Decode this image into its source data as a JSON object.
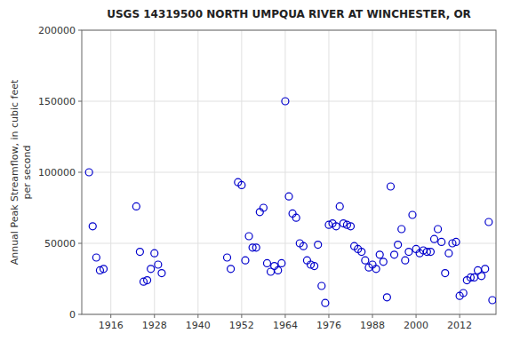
{
  "chart_data": {
    "type": "scatter",
    "title": "USGS 14319500 NORTH UMPQUA RIVER AT WINCHESTER, OR",
    "ylabel": "Annual Peak Streamflow, in cubic feet\nper second",
    "x": [
      1910,
      1911,
      1912,
      1913,
      1914,
      1923,
      1924,
      1925,
      1926,
      1927,
      1928,
      1929,
      1930,
      1948,
      1949,
      1951,
      1952,
      1953,
      1954,
      1955,
      1956,
      1957,
      1958,
      1959,
      1960,
      1961,
      1962,
      1963,
      1964,
      1965,
      1966,
      1967,
      1968,
      1969,
      1970,
      1971,
      1972,
      1973,
      1974,
      1975,
      1976,
      1977,
      1978,
      1979,
      1980,
      1981,
      1982,
      1983,
      1984,
      1985,
      1986,
      1987,
      1988,
      1989,
      1990,
      1991,
      1992,
      1993,
      1994,
      1995,
      1996,
      1997,
      1998,
      1999,
      2000,
      2001,
      2002,
      2003,
      2004,
      2005,
      2006,
      2007,
      2008,
      2009,
      2010,
      2011,
      2012,
      2013,
      2014,
      2015,
      2016,
      2017,
      2018,
      2019,
      2020,
      2021
    ],
    "values": [
      100000,
      62000,
      40000,
      31000,
      32000,
      76000,
      44000,
      23000,
      24000,
      32000,
      43000,
      35000,
      29000,
      40000,
      32000,
      93000,
      91000,
      38000,
      55000,
      47000,
      47000,
      72000,
      75000,
      36000,
      30000,
      34000,
      31000,
      36000,
      150000,
      83000,
      71000,
      68000,
      50000,
      48000,
      38000,
      35000,
      34000,
      49000,
      20000,
      8000,
      63000,
      64000,
      62000,
      76000,
      64000,
      63000,
      62000,
      48000,
      46000,
      44000,
      38000,
      33000,
      35000,
      32000,
      42000,
      37000,
      12000,
      90000,
      42000,
      49000,
      60000,
      38000,
      44000,
      70000,
      46000,
      43000,
      45000,
      44000,
      44000,
      53000,
      60000,
      51000,
      29000,
      43000,
      50000,
      51000,
      13000,
      15000,
      24000,
      26000,
      26000,
      31000,
      27000,
      32000,
      65000,
      10000
    ],
    "color": "#0000cc",
    "marker": "circle",
    "xlim": [
      1908,
      2022
    ],
    "ylim": [
      0,
      200000
    ],
    "xticks": [
      1916,
      1928,
      1940,
      1952,
      1964,
      1976,
      1988,
      2000,
      2012
    ],
    "yticks": [
      0,
      50000,
      100000,
      150000,
      200000
    ],
    "grid": true
  }
}
